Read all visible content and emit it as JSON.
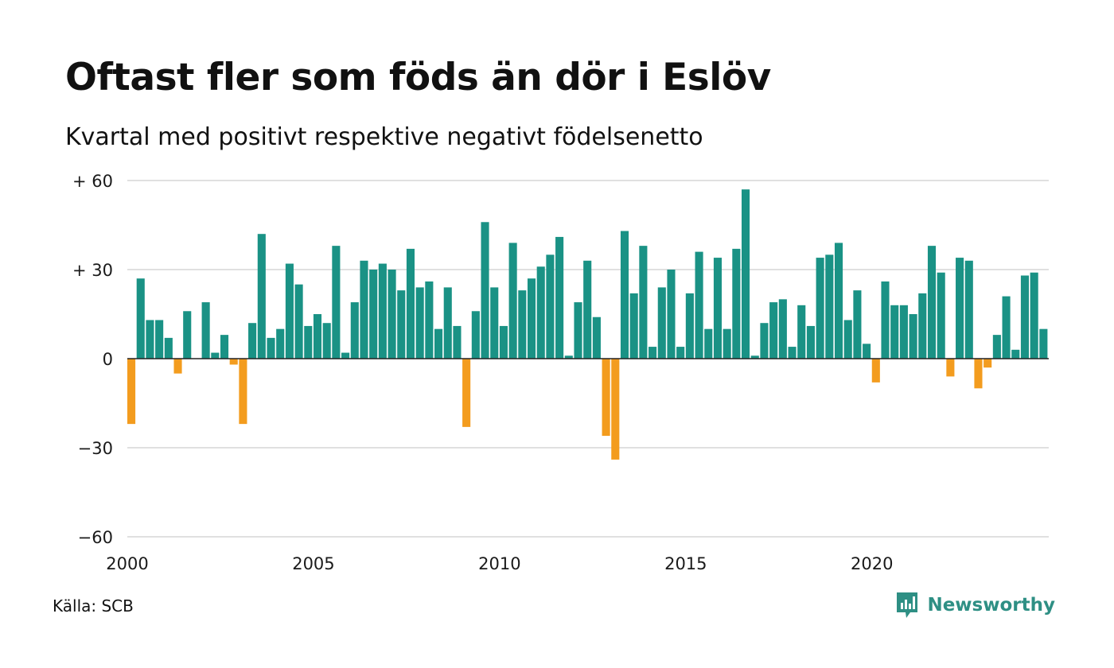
{
  "header": {
    "title": "Oftast fler som föds än dör i Eslöv",
    "subtitle": "Kvartal med positivt respektive negativt födelsenetto"
  },
  "footer": {
    "source": "Källa: SCB",
    "brand": "Newsworthy",
    "brand_color": "#2e8f84"
  },
  "chart_data": {
    "type": "bar",
    "title": "Oftast fler som föds än dör i Eslöv",
    "subtitle": "Kvartal med positivt respektive negativt födelsenetto",
    "xlabel": "",
    "ylabel": "",
    "ylim": [
      -60,
      60
    ],
    "y_ticks": [
      {
        "value": 60,
        "label": "+ 60"
      },
      {
        "value": 30,
        "label": "+ 30"
      },
      {
        "value": 0,
        "label": "0"
      },
      {
        "value": -30,
        "label": "−30"
      },
      {
        "value": -60,
        "label": "−60"
      }
    ],
    "x_ticks": [
      "2000",
      "2005",
      "2010",
      "2015",
      "2020"
    ],
    "x_tick_years": [
      2000,
      2005,
      2010,
      2015,
      2020
    ],
    "start_year": 2000,
    "start_quarter": 1,
    "grid": true,
    "legend": "none",
    "colors": {
      "positive": "#1a9285",
      "negative": "#f39c1e",
      "grid": "#e0e0e0",
      "zero_line": "#222222"
    },
    "series": [
      {
        "values": [
          -22,
          27,
          13,
          13,
          7,
          -5,
          16,
          0,
          19,
          2,
          8,
          -2,
          -22,
          12,
          42,
          7,
          10,
          32,
          25,
          11,
          15,
          12,
          38,
          2,
          19,
          33,
          30,
          32,
          30,
          23,
          37,
          24,
          26,
          10,
          24,
          11,
          -23,
          16,
          46,
          24,
          11,
          39,
          23,
          27,
          31,
          35,
          41,
          1,
          19,
          33,
          14,
          -26,
          -34,
          43,
          22,
          38,
          4,
          24,
          30,
          4,
          22,
          36,
          10,
          34,
          10,
          37,
          57,
          1,
          12,
          19,
          20,
          4,
          18,
          11,
          34,
          35,
          39,
          13,
          23,
          5,
          -8,
          26,
          18,
          18,
          15,
          22,
          38,
          29,
          -6,
          34,
          33,
          -10,
          -3,
          8,
          21,
          3,
          28,
          29,
          10
        ]
      }
    ]
  }
}
